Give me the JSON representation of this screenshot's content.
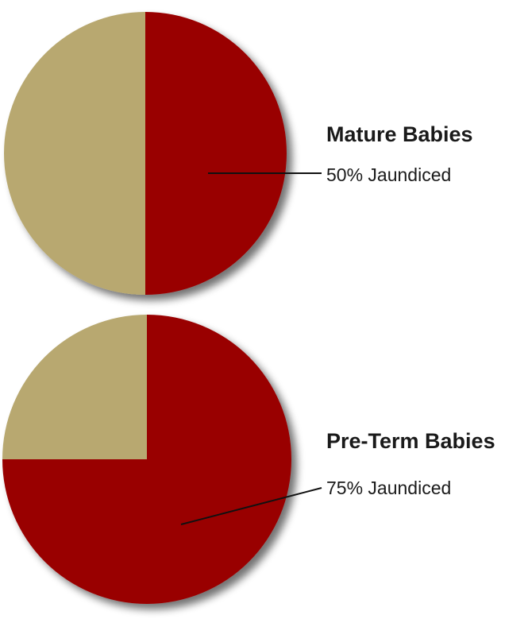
{
  "colors": {
    "jaundiced": "#990000",
    "not_jaundiced": "#b8a86f",
    "leader_line": "#111111"
  },
  "chart_data": [
    {
      "type": "pie",
      "title": "Mature Babies",
      "slices": [
        {
          "label": "Jaundiced",
          "value": 50,
          "color": "#990000",
          "shown_label": "50% Jaundiced"
        },
        {
          "label": "",
          "value": 50,
          "color": "#b8a86f"
        }
      ]
    },
    {
      "type": "pie",
      "title": "Pre-Term Babies",
      "slices": [
        {
          "label": "Jaundiced",
          "value": 75,
          "color": "#990000",
          "shown_label": "75% Jaundiced"
        },
        {
          "label": "",
          "value": 25,
          "color": "#b8a86f"
        }
      ]
    }
  ]
}
